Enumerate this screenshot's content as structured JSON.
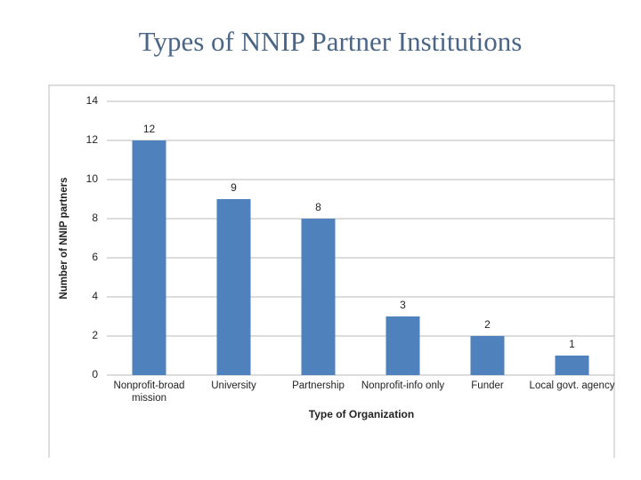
{
  "chart_data": {
    "type": "bar",
    "title": "Types of NNIP Partner Institutions",
    "x_label": "Type of Organization",
    "y_label": "Number of NNIP partners",
    "categories": [
      "Nonprofit-broad mission",
      "University",
      "Partnership",
      "Nonprofit-info only",
      "Funder",
      "Local govt. agency"
    ],
    "values": [
      12,
      9,
      8,
      3,
      2,
      1
    ],
    "color": "#4f81bd",
    "ylim": [
      0,
      14
    ],
    "yticks": [
      0,
      2,
      4,
      6,
      8,
      10,
      12,
      14
    ],
    "grid": true
  }
}
